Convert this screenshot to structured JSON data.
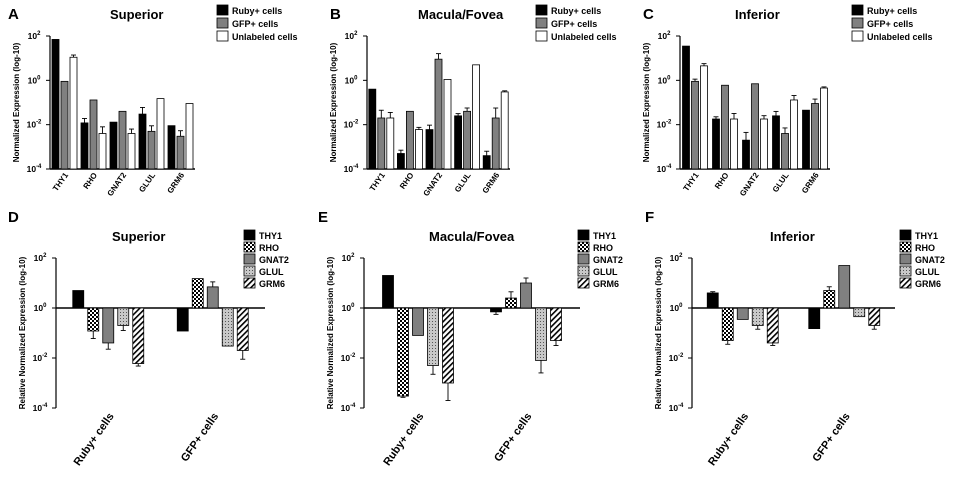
{
  "chart_data": [
    {
      "panel": "A",
      "type": "bar",
      "title": "Superior",
      "ylabel": "Normalized Expression (log-10)",
      "yscale": "log",
      "ylim": [
        0.0001,
        100
      ],
      "yticks": [
        0.0001,
        0.01,
        1,
        100
      ],
      "ytick_labels": [
        [
          "10",
          "-4"
        ],
        [
          "10",
          "-2"
        ],
        [
          "10",
          "0"
        ],
        [
          "10",
          "2"
        ]
      ],
      "categories": [
        "THY1",
        "RHO",
        "GNAT2",
        "GLUL",
        "GRM6"
      ],
      "series": [
        {
          "name": "Ruby+ cells",
          "fill": "#000000",
          "values": [
            70,
            0.012,
            0.013,
            0.03,
            0.009
          ],
          "errors": [
            0,
            0.2,
            0,
            0.3,
            0
          ]
        },
        {
          "name": "GFP+ cells",
          "fill": "#808080",
          "values": [
            0.9,
            0.13,
            0.04,
            0.005,
            0.003
          ],
          "errors": [
            0,
            0,
            0,
            0.25,
            0.25
          ]
        },
        {
          "name": "Unlabeled cells",
          "fill": "#ffffff",
          "values": [
            11,
            0.004,
            0.004,
            0.15,
            0.09
          ],
          "errors": [
            0.1,
            0.3,
            0.2,
            0,
            0
          ]
        }
      ]
    },
    {
      "panel": "B",
      "type": "bar",
      "title": "Macula/Fovea",
      "ylabel": "Normalized Expression (log-10)",
      "yscale": "log",
      "ylim": [
        0.0001,
        100
      ],
      "yticks": [
        0.0001,
        0.01,
        1,
        100
      ],
      "ytick_labels": [
        [
          "10",
          "-4"
        ],
        [
          "10",
          "-2"
        ],
        [
          "10",
          "0"
        ],
        [
          "10",
          "2"
        ]
      ],
      "categories": [
        "THY1",
        "RHO",
        "GNAT2",
        "GLUL",
        "GRM6"
      ],
      "series": [
        {
          "name": "Ruby+ cells",
          "fill": "#000000",
          "values": [
            0.4,
            0.0005,
            0.006,
            0.025,
            0.0004
          ],
          "errors": [
            0,
            0.15,
            0.2,
            0.1,
            0.2
          ]
        },
        {
          "name": "GFP+ cells",
          "fill": "#808080",
          "values": [
            0.02,
            0.04,
            9,
            0.04,
            0.02
          ],
          "errors": [
            0.35,
            0,
            0.25,
            0.15,
            0.45
          ]
        },
        {
          "name": "Unlabeled cells",
          "fill": "#ffffff",
          "values": [
            0.02,
            0.006,
            1.1,
            5,
            0.3
          ],
          "errors": [
            0.25,
            0.1,
            0,
            0,
            0.05
          ]
        }
      ]
    },
    {
      "panel": "C",
      "type": "bar",
      "title": "Inferior",
      "ylabel": "Normalized Expression (log-10)",
      "yscale": "log",
      "ylim": [
        0.0001,
        100
      ],
      "yticks": [
        0.0001,
        0.01,
        1,
        100
      ],
      "ytick_labels": [
        [
          "10",
          "-4"
        ],
        [
          "10",
          "-2"
        ],
        [
          "10",
          "0"
        ],
        [
          "10",
          "2"
        ]
      ],
      "categories": [
        "THY1",
        "RHO",
        "GNAT2",
        "GLUL",
        "GRM6"
      ],
      "series": [
        {
          "name": "Ruby+ cells",
          "fill": "#000000",
          "values": [
            35,
            0.018,
            0.002,
            0.025,
            0.045
          ],
          "errors": [
            0,
            0.1,
            0.35,
            0.2,
            0
          ]
        },
        {
          "name": "GFP+ cells",
          "fill": "#808080",
          "values": [
            0.9,
            0.6,
            0.7,
            0.004,
            0.09
          ],
          "errors": [
            0.1,
            0,
            0,
            0.25,
            0.2
          ]
        },
        {
          "name": "Unlabeled cells",
          "fill": "#ffffff",
          "values": [
            4.5,
            0.018,
            0.018,
            0.13,
            0.45
          ],
          "errors": [
            0.1,
            0.25,
            0.15,
            0.2,
            0.05
          ]
        }
      ]
    },
    {
      "panel": "D",
      "type": "bar",
      "title": "Superior",
      "ylabel": "Relative Normalized Expression (log-10)",
      "yscale": "log",
      "baseline": 1,
      "ylim": [
        0.0001,
        100
      ],
      "yticks": [
        0.0001,
        0.01,
        1,
        100
      ],
      "ytick_labels": [
        [
          "10",
          "-4"
        ],
        [
          "10",
          "-2"
        ],
        [
          "10",
          "0"
        ],
        [
          "10",
          "2"
        ]
      ],
      "categories": [
        "Ruby+ cells",
        "GFP+ cells"
      ],
      "series": [
        {
          "name": "THY1",
          "fill": "#000000",
          "values": [
            5,
            0.12
          ],
          "errors": [
            0,
            0
          ]
        },
        {
          "name": "RHO",
          "fill": "pat-check",
          "values": [
            0.12,
            15
          ],
          "errors": [
            0.3,
            0
          ]
        },
        {
          "name": "GNAT2",
          "fill": "#808080",
          "values": [
            0.04,
            7
          ],
          "errors": [
            0.25,
            0.2
          ]
        },
        {
          "name": "GLUL",
          "fill": "pat-dots",
          "values": [
            0.2,
            0.03
          ],
          "errors": [
            0.2,
            0
          ]
        },
        {
          "name": "GRM6",
          "fill": "pat-hatch",
          "values": [
            0.006,
            0.02
          ],
          "errors": [
            0.1,
            0.35
          ]
        }
      ]
    },
    {
      "panel": "E",
      "type": "bar",
      "title": "Macula/Fovea",
      "ylabel": "Relative Normalized Expression (log-10)",
      "yscale": "log",
      "baseline": 1,
      "ylim": [
        0.0001,
        100
      ],
      "yticks": [
        0.0001,
        0.01,
        1,
        100
      ],
      "ytick_labels": [
        [
          "10",
          "-4"
        ],
        [
          "10",
          "-2"
        ],
        [
          "10",
          "0"
        ],
        [
          "10",
          "2"
        ]
      ],
      "categories": [
        "Ruby+ cells",
        "GFP+ cells"
      ],
      "series": [
        {
          "name": "THY1",
          "fill": "#000000",
          "values": [
            20,
            0.7
          ],
          "errors": [
            0,
            0.1
          ]
        },
        {
          "name": "RHO",
          "fill": "pat-check",
          "values": [
            0.0003,
            2.5
          ],
          "errors": [
            0.05,
            0.25
          ]
        },
        {
          "name": "GNAT2",
          "fill": "#808080",
          "values": [
            0.08,
            10
          ],
          "errors": [
            0,
            0.2
          ]
        },
        {
          "name": "GLUL",
          "fill": "pat-dots",
          "values": [
            0.005,
            0.008
          ],
          "errors": [
            0.35,
            0.5
          ]
        },
        {
          "name": "GRM6",
          "fill": "pat-hatch",
          "values": [
            0.001,
            0.05
          ],
          "errors": [
            0.7,
            0.2
          ]
        }
      ]
    },
    {
      "panel": "F",
      "type": "bar",
      "title": "Inferior",
      "ylabel": "Relative Normalized Expression (log-10)",
      "yscale": "log",
      "baseline": 1,
      "ylim": [
        0.0001,
        100
      ],
      "yticks": [
        0.0001,
        0.01,
        1,
        100
      ],
      "ytick_labels": [
        [
          "10",
          "-4"
        ],
        [
          "10",
          "-2"
        ],
        [
          "10",
          "0"
        ],
        [
          "10",
          "2"
        ]
      ],
      "categories": [
        "Ruby+ cells",
        "GFP+ cells"
      ],
      "series": [
        {
          "name": "THY1",
          "fill": "#000000",
          "values": [
            4,
            0.15
          ],
          "errors": [
            0.05,
            0
          ]
        },
        {
          "name": "RHO",
          "fill": "pat-check",
          "values": [
            0.05,
            5
          ],
          "errors": [
            0.15,
            0.15
          ]
        },
        {
          "name": "GNAT2",
          "fill": "#808080",
          "values": [
            0.35,
            50
          ],
          "errors": [
            0,
            0
          ]
        },
        {
          "name": "GLUL",
          "fill": "pat-dots",
          "values": [
            0.2,
            0.45
          ],
          "errors": [
            0.15,
            0
          ]
        },
        {
          "name": "GRM6",
          "fill": "pat-hatch",
          "values": [
            0.04,
            0.2
          ],
          "errors": [
            0.1,
            0.15
          ]
        }
      ]
    }
  ]
}
